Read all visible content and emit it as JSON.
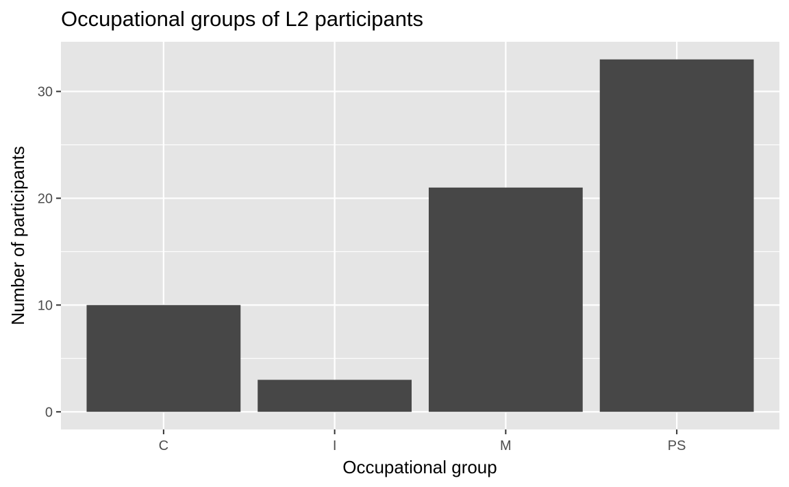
{
  "chart_data": {
    "type": "bar",
    "title": "Occupational groups of L2 participants",
    "xlabel": "Occupational group",
    "ylabel": "Number of participants",
    "categories": [
      "C",
      "I",
      "M",
      "PS"
    ],
    "values": [
      10,
      3,
      21,
      33
    ],
    "ylim": [
      -1.65,
      34.65
    ],
    "yticks": [
      0,
      10,
      20,
      30
    ],
    "yminor": [
      5,
      15,
      25
    ],
    "grid": true,
    "legend": "none",
    "colors": {
      "bar": "#474747",
      "panel": "#e5e5e5",
      "grid": "#ffffff",
      "tick": "#333333"
    }
  }
}
